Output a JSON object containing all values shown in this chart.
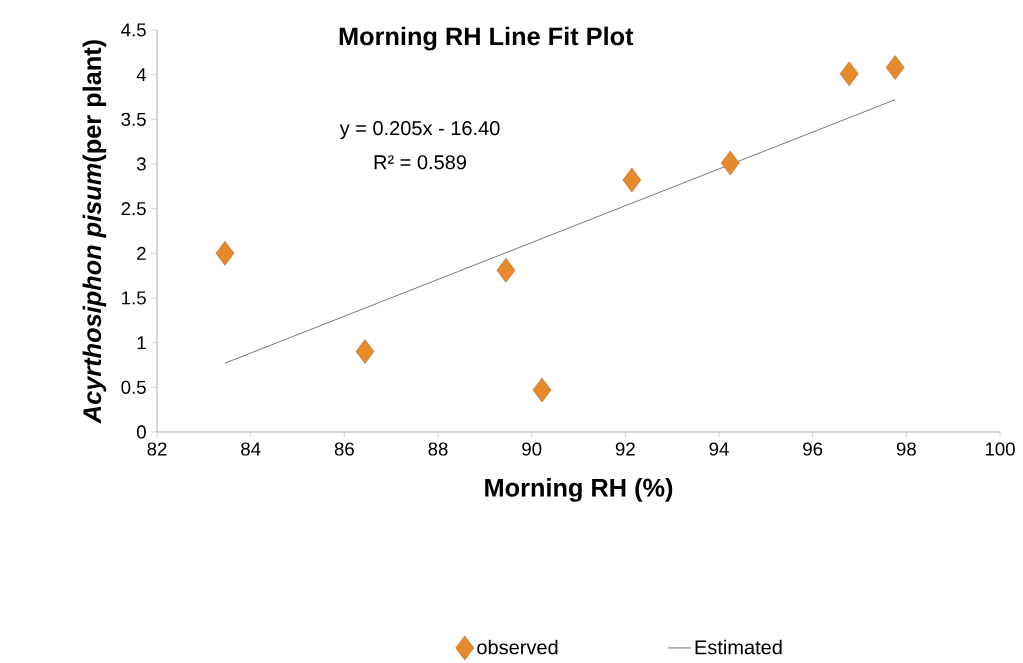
{
  "chart_data": {
    "type": "scatter",
    "title": "Morning RH Line Fit  Plot",
    "xlabel": "Morning  RH (%)",
    "ylabel": "*Acyrthosiphon pisum*(per plant)",
    "annotations": [
      "y = 0.205x - 16.40",
      "R² = 0.589"
    ],
    "xlim": [
      82,
      100
    ],
    "xticks": [
      82,
      84,
      86,
      88,
      90,
      92,
      94,
      96,
      98,
      100
    ],
    "ylim": [
      0,
      4.5
    ],
    "yticks": [
      0,
      0.5,
      1,
      1.5,
      2,
      2.5,
      3,
      3.5,
      4,
      4.5
    ],
    "legend": "bottom",
    "series": [
      {
        "name": "observed",
        "marker": "diamond",
        "color": "#e8892e",
        "x": [
          83.45,
          86.44,
          89.45,
          90.22,
          92.14,
          94.24,
          96.78,
          97.76
        ],
        "values": [
          2.0,
          0.9,
          1.81,
          0.47,
          2.82,
          3.01,
          4.01,
          4.08
        ]
      },
      {
        "name": "Estimated",
        "type": "line",
        "marker": "none",
        "line_style": "solid",
        "color": "#000000",
        "x": [
          83.45,
          97.76
        ],
        "values": [
          0.77,
          3.72
        ]
      }
    ]
  }
}
